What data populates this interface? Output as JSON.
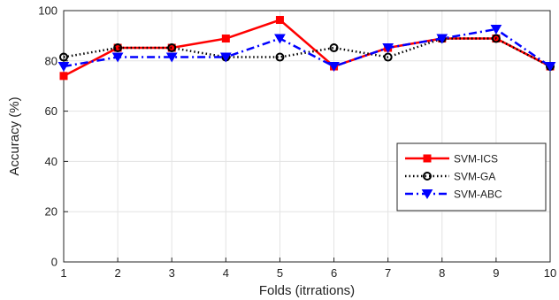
{
  "chart_data": {
    "type": "line",
    "title": "",
    "xlabel": "Folds (itrrations)",
    "ylabel": "Accuracy (%)",
    "xlim": [
      1,
      10
    ],
    "ylim": [
      0,
      100
    ],
    "xticks": [
      1,
      2,
      3,
      4,
      5,
      6,
      7,
      8,
      9,
      10
    ],
    "yticks": [
      0,
      20,
      40,
      60,
      80,
      100
    ],
    "grid": true,
    "legend_position": "right",
    "x": [
      1,
      2,
      3,
      4,
      5,
      6,
      7,
      8,
      9,
      10
    ],
    "series": [
      {
        "name": "SVM-ICS",
        "color": "#ff0000",
        "line_style": "solid",
        "marker": "square",
        "values": [
          74,
          85.2,
          85.2,
          88.9,
          96.3,
          77.8,
          85.2,
          88.9,
          88.9,
          77.8
        ]
      },
      {
        "name": "SVM-GA",
        "color": "#000000",
        "line_style": "dotted",
        "marker": "circle",
        "values": [
          81.5,
          85.2,
          85.2,
          81.5,
          81.5,
          85.2,
          81.5,
          88.9,
          88.9,
          77.8
        ]
      },
      {
        "name": "SVM-ABC",
        "color": "#0000ff",
        "line_style": "dashdot",
        "marker": "triangle-down",
        "values": [
          77.8,
          81.5,
          81.5,
          81.5,
          88.9,
          77.8,
          85.2,
          88.9,
          92.6,
          77.8
        ]
      }
    ]
  }
}
